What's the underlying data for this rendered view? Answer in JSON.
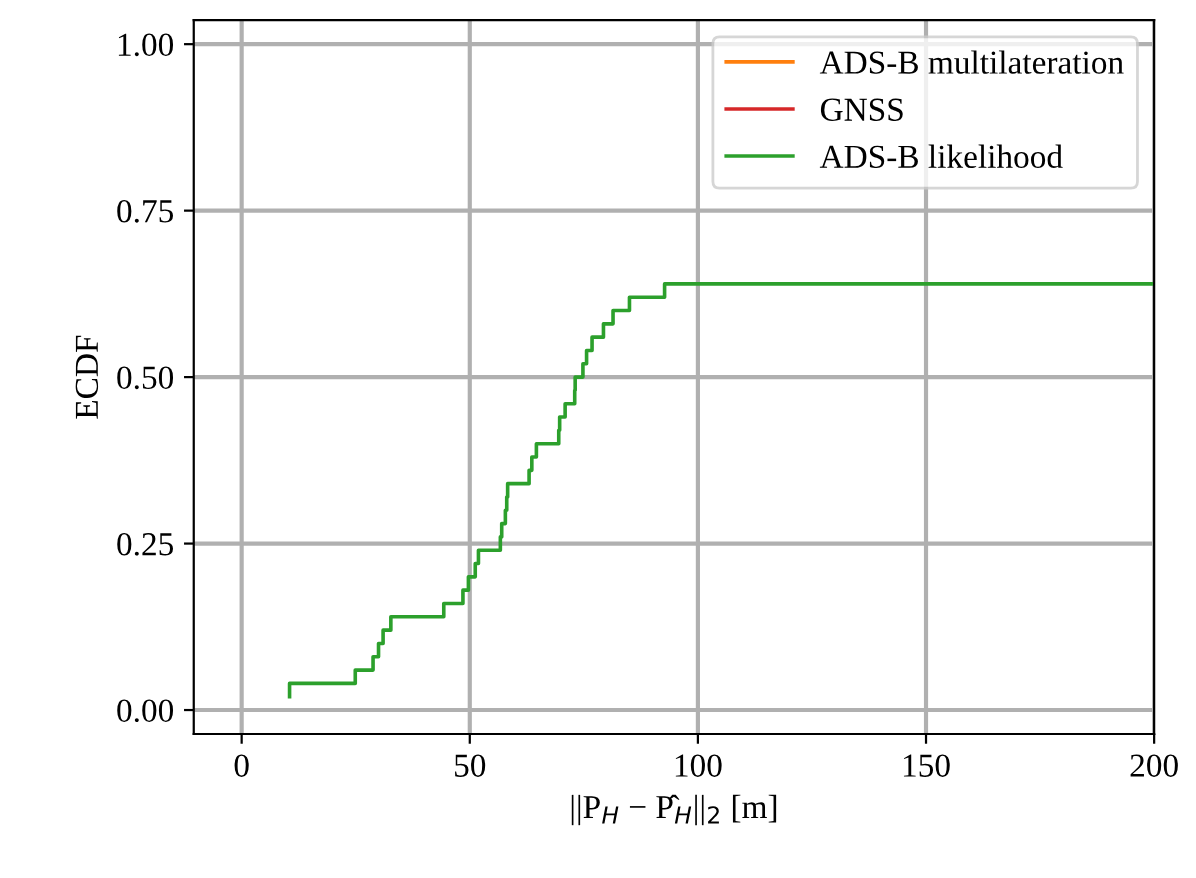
{
  "chart_data": {
    "type": "step",
    "xlabel": "||P$_{H}$ − P̂$_{H}$||$_{2}$ [m]",
    "ylabel": "ECDF",
    "series": [
      {
        "name": "ADS-B multilateration",
        "color": "#ff7f0e"
      },
      {
        "name": "GNSS",
        "color": "#d62728"
      },
      {
        "name": "ADS-B likelihood",
        "color": "#2ca02c",
        "x": [
          10.5,
          10.5,
          24.9,
          28.8,
          30,
          31,
          32.7,
          44.3,
          48.5,
          49.7,
          51.2,
          51.9,
          56.7,
          57,
          57.8,
          58.1,
          58.3,
          63,
          63.6,
          64.6,
          69.5,
          69.7,
          70.9,
          73,
          73.1,
          74.8,
          75.6,
          76.8,
          79.3,
          81.4,
          85,
          92.7,
          200
        ],
        "values": [
          0.02,
          0.04,
          0.06,
          0.08,
          0.1,
          0.12,
          0.14,
          0.16,
          0.18,
          0.2,
          0.22,
          0.24,
          0.26,
          0.28,
          0.3,
          0.32,
          0.34,
          0.36,
          0.38,
          0.4,
          0.42,
          0.44,
          0.46,
          0.48,
          0.5,
          0.52,
          0.54,
          0.56,
          0.58,
          0.6,
          0.62,
          0.64,
          0.64
        ]
      }
    ],
    "xlim": [
      -10.5,
      200
    ],
    "xticks": [
      0,
      50,
      100,
      150,
      200
    ],
    "ylim": [
      -0.036,
      1.036
    ],
    "yticks": [
      {
        "value": 0,
        "label": "0.00"
      },
      {
        "value": 0.25,
        "label": "0.25"
      },
      {
        "value": 0.5,
        "label": "0.50"
      },
      {
        "value": 0.75,
        "label": "0.75"
      },
      {
        "value": 1,
        "label": "1.00"
      }
    ],
    "grid": true,
    "legend": "top right"
  }
}
